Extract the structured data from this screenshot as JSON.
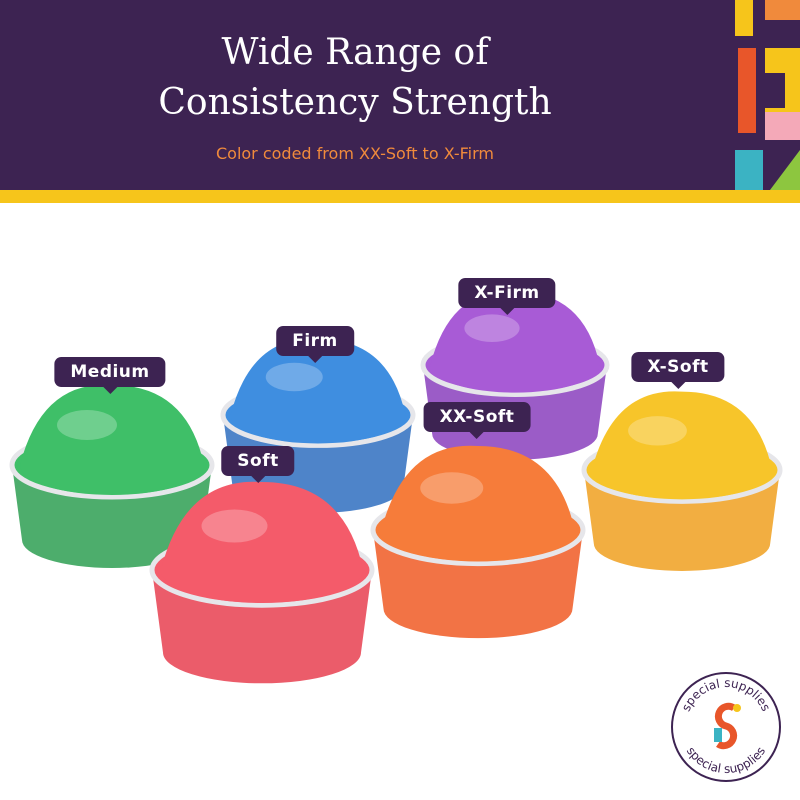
{
  "header": {
    "title_lines": [
      "Wide Range of",
      "Consistency Strength"
    ],
    "subtitle": "Color coded from XX-Soft to X-Firm"
  },
  "labels": [
    "Medium",
    "Firm",
    "X-Firm",
    "X-Soft",
    "Soft",
    "XX-Soft"
  ],
  "logo": {
    "top": "special supplies",
    "bottom": "special supplies"
  }
}
